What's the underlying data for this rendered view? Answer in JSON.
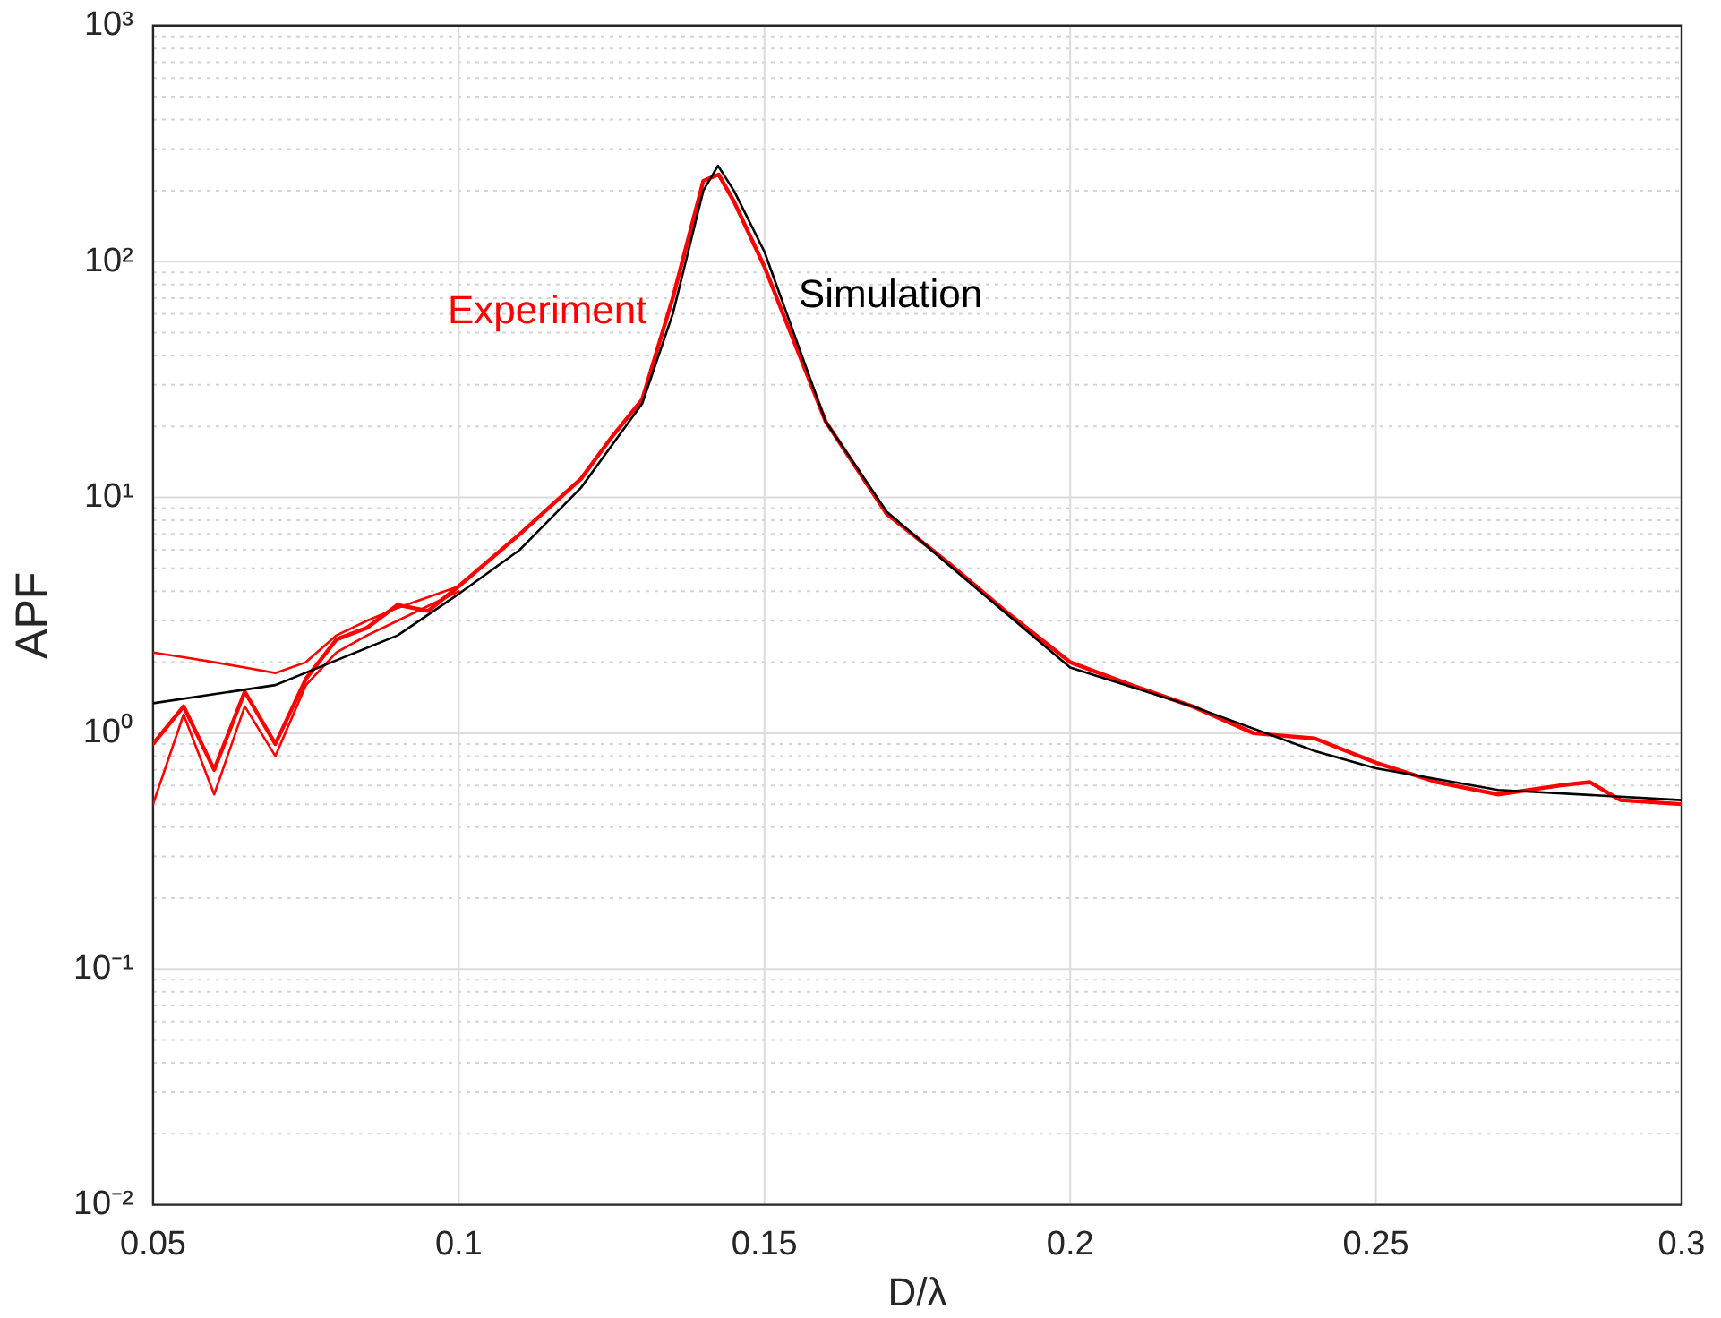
{
  "chart_data": {
    "type": "line",
    "xlabel": "D/λ",
    "ylabel": "APF",
    "log": "y",
    "grid": true,
    "legend": false,
    "marker": "none",
    "line_style": "solid",
    "xlim": [
      0.05,
      0.3
    ],
    "xticks": [
      0.05,
      0.1,
      0.15,
      0.2,
      0.25,
      0.3
    ],
    "ylim": [
      0.01,
      1000
    ],
    "yticks": [
      {
        "value": 0.01,
        "label": "10⁻²"
      },
      {
        "value": 0.1,
        "label": "10⁻¹"
      },
      {
        "value": 1,
        "label": "10⁰"
      },
      {
        "value": 10,
        "label": "10¹"
      },
      {
        "value": 100,
        "label": "10²"
      },
      {
        "value": 1000,
        "label": "10³"
      }
    ],
    "series": [
      {
        "name": "Experiment",
        "color": "#ff0000",
        "x": [
          0.05,
          0.055,
          0.06,
          0.065,
          0.07,
          0.075,
          0.08,
          0.085,
          0.09,
          0.095,
          0.1,
          0.11,
          0.12,
          0.125,
          0.13,
          0.135,
          0.14,
          0.1425,
          0.145,
          0.15,
          0.16,
          0.17,
          0.18,
          0.19,
          0.2,
          0.21,
          0.22,
          0.23,
          0.24,
          0.25,
          0.26,
          0.27,
          0.28,
          0.285,
          0.29,
          0.3
        ],
        "values": [
          0.9,
          1.3,
          0.7,
          1.5,
          0.9,
          1.7,
          2.5,
          2.8,
          3.5,
          3.3,
          4.2,
          7,
          12,
          18,
          26,
          70,
          220,
          234,
          180,
          95,
          21,
          8.5,
          5.3,
          3.2,
          2.0,
          1.6,
          1.3,
          1.0,
          0.95,
          0.75,
          0.62,
          0.55,
          0.6,
          0.62,
          0.52,
          0.5
        ]
      },
      {
        "color": "#ff0000",
        "x": [
          0.05,
          0.055,
          0.06,
          0.065,
          0.07,
          0.075,
          0.08,
          0.085,
          0.09,
          0.1
        ],
        "values": [
          2.2,
          2.1,
          2.0,
          1.9,
          1.8,
          2.0,
          2.6,
          3.0,
          3.4,
          4.2
        ]
      },
      {
        "color": "#ff0000",
        "x": [
          0.05,
          0.055,
          0.06,
          0.065,
          0.07,
          0.075,
          0.08,
          0.085,
          0.09,
          0.1
        ],
        "values": [
          0.5,
          1.2,
          0.55,
          1.3,
          0.8,
          1.6,
          2.2,
          2.6,
          3.0,
          4.0
        ]
      },
      {
        "name": "Simulation",
        "color": "#000000",
        "x": [
          0.05,
          0.07,
          0.09,
          0.1,
          0.11,
          0.12,
          0.13,
          0.135,
          0.14,
          0.1424,
          0.145,
          0.15,
          0.16,
          0.17,
          0.18,
          0.2,
          0.22,
          0.24,
          0.25,
          0.27,
          0.3
        ],
        "values": [
          1.34,
          1.6,
          2.6,
          3.9,
          6,
          11,
          25,
          60,
          200,
          255,
          200,
          110,
          21,
          8.7,
          5.2,
          1.9,
          1.3,
          0.84,
          0.71,
          0.575,
          0.52
        ]
      }
    ]
  }
}
